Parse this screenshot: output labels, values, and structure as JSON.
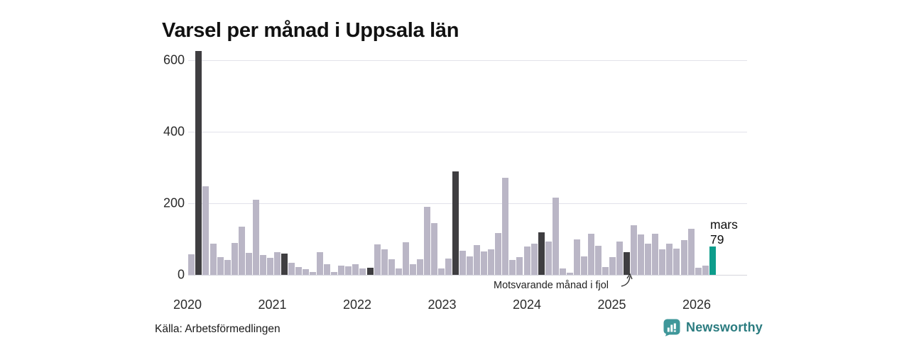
{
  "title": "Varsel per månad i Uppsala län",
  "source_label": "Källa: Arbetsförmedlingen",
  "brand": {
    "name": "Newsworthy",
    "icon": "newsworthy-bubble-chart-icon",
    "color_text": "#2b7c80",
    "color_icon": "#3f979a"
  },
  "annotation": {
    "text": "Motsvarande månad i fjol",
    "points_to": "2025-03"
  },
  "current_label": {
    "month": "mars",
    "value": "79"
  },
  "chart_data": {
    "type": "bar",
    "title": "Varsel per månad i Uppsala län",
    "xlabel": "",
    "ylabel": "",
    "ylim": [
      0,
      650
    ],
    "y_ticks": [
      0,
      200,
      400,
      600
    ],
    "x_axis_years": [
      "2020",
      "2021",
      "2022",
      "2023",
      "2024",
      "2025",
      "2026"
    ],
    "grid": true,
    "legend": "none",
    "colors": {
      "base": "#bab6c6",
      "fjol": "#3f3e41",
      "current": "#0e9d8c"
    },
    "roles_meaning": {
      "base": "ordinary month",
      "fjol": "same month in previous years (March)",
      "current": "latest month (March 2026)"
    },
    "points": [
      [
        "2020-02",
        57,
        "base"
      ],
      [
        "2020-03",
        625,
        "fjol"
      ],
      [
        "2020-04",
        247,
        "base"
      ],
      [
        "2020-05",
        87,
        "base"
      ],
      [
        "2020-06",
        50,
        "base"
      ],
      [
        "2020-07",
        42,
        "base"
      ],
      [
        "2020-08",
        90,
        "base"
      ],
      [
        "2020-09",
        135,
        "base"
      ],
      [
        "2020-10",
        62,
        "base"
      ],
      [
        "2020-11",
        210,
        "base"
      ],
      [
        "2020-12",
        56,
        "base"
      ],
      [
        "2021-01",
        47,
        "base"
      ],
      [
        "2021-02",
        64,
        "base"
      ],
      [
        "2021-03",
        60,
        "fjol"
      ],
      [
        "2021-04",
        34,
        "base"
      ],
      [
        "2021-05",
        22,
        "base"
      ],
      [
        "2021-06",
        16,
        "base"
      ],
      [
        "2021-07",
        7,
        "base"
      ],
      [
        "2021-08",
        64,
        "base"
      ],
      [
        "2021-09",
        30,
        "base"
      ],
      [
        "2021-10",
        7,
        "base"
      ],
      [
        "2021-11",
        26,
        "base"
      ],
      [
        "2021-12",
        24,
        "base"
      ],
      [
        "2022-01",
        29,
        "base"
      ],
      [
        "2022-02",
        18,
        "base"
      ],
      [
        "2022-03",
        20,
        "fjol"
      ],
      [
        "2022-04",
        86,
        "base"
      ],
      [
        "2022-05",
        71,
        "base"
      ],
      [
        "2022-06",
        43,
        "base"
      ],
      [
        "2022-07",
        18,
        "base"
      ],
      [
        "2022-08",
        91,
        "base"
      ],
      [
        "2022-09",
        30,
        "base"
      ],
      [
        "2022-10",
        43,
        "base"
      ],
      [
        "2022-11",
        191,
        "base"
      ],
      [
        "2022-12",
        145,
        "base"
      ],
      [
        "2023-01",
        17,
        "base"
      ],
      [
        "2023-02",
        45,
        "base"
      ],
      [
        "2023-03",
        289,
        "fjol"
      ],
      [
        "2023-04",
        67,
        "base"
      ],
      [
        "2023-05",
        52,
        "base"
      ],
      [
        "2023-06",
        83,
        "base"
      ],
      [
        "2023-07",
        65,
        "base"
      ],
      [
        "2023-08",
        72,
        "base"
      ],
      [
        "2023-09",
        117,
        "base"
      ],
      [
        "2023-10",
        271,
        "base"
      ],
      [
        "2023-11",
        41,
        "base"
      ],
      [
        "2023-12",
        49,
        "base"
      ],
      [
        "2024-01",
        80,
        "base"
      ],
      [
        "2024-02",
        88,
        "base"
      ],
      [
        "2024-03",
        118,
        "fjol"
      ],
      [
        "2024-04",
        94,
        "base"
      ],
      [
        "2024-05",
        216,
        "base"
      ],
      [
        "2024-06",
        18,
        "base"
      ],
      [
        "2024-07",
        6,
        "base"
      ],
      [
        "2024-08",
        100,
        "base"
      ],
      [
        "2024-09",
        51,
        "base"
      ],
      [
        "2024-10",
        115,
        "base"
      ],
      [
        "2024-11",
        81,
        "base"
      ],
      [
        "2024-12",
        22,
        "base"
      ],
      [
        "2025-01",
        50,
        "base"
      ],
      [
        "2025-02",
        94,
        "base"
      ],
      [
        "2025-03",
        64,
        "fjol"
      ],
      [
        "2025-04",
        138,
        "base"
      ],
      [
        "2025-05",
        112,
        "base"
      ],
      [
        "2025-06",
        87,
        "base"
      ],
      [
        "2025-07",
        114,
        "base"
      ],
      [
        "2025-08",
        71,
        "base"
      ],
      [
        "2025-09",
        87,
        "base"
      ],
      [
        "2025-10",
        73,
        "base"
      ],
      [
        "2025-11",
        97,
        "base"
      ],
      [
        "2025-12",
        129,
        "base"
      ],
      [
        "2026-01",
        20,
        "base"
      ],
      [
        "2026-02",
        25,
        "base"
      ],
      [
        "2026-03",
        79,
        "current"
      ]
    ]
  }
}
